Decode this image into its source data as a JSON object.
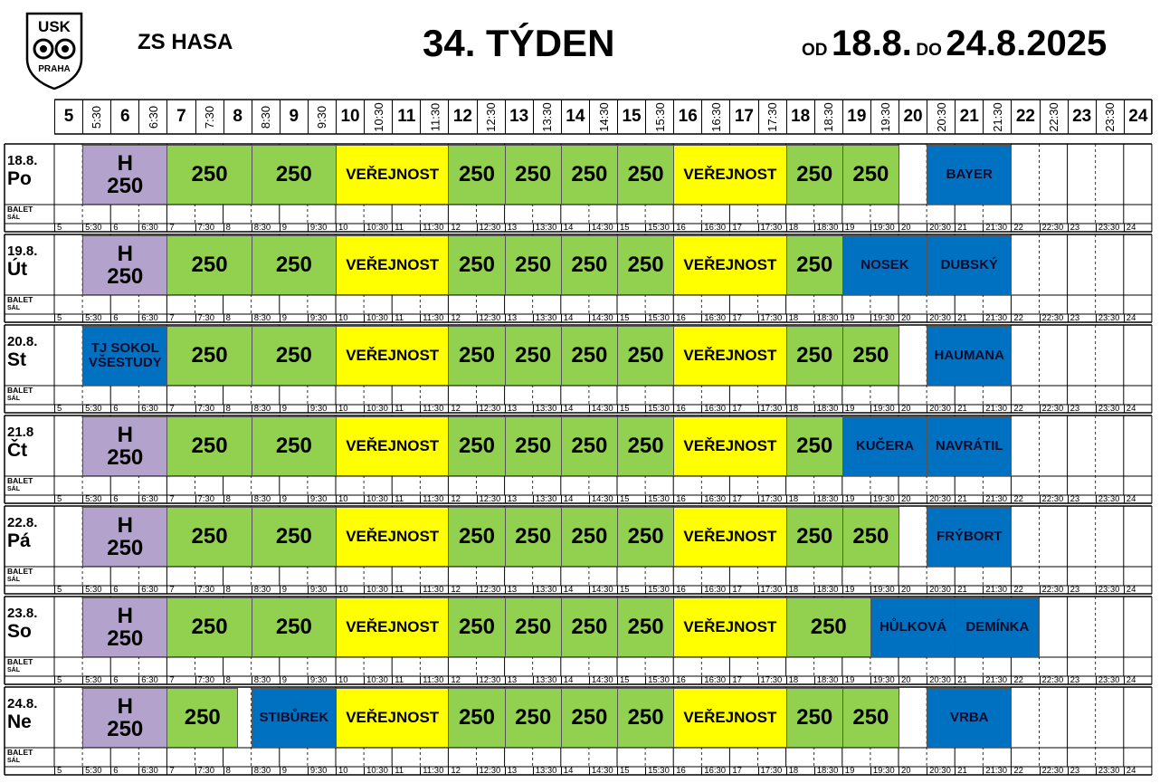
{
  "header": {
    "logo_text_top": "USK",
    "logo_text_bottom": "PRAHA",
    "venue": "ZS HASA",
    "week": "34. TÝDEN",
    "range_from_label": "OD",
    "range_from": "18.8.",
    "range_to_label": "DO",
    "range_to": "24.8.2025"
  },
  "balet_label_1": "BALET",
  "balet_label_2": "SÁL",
  "colors": {
    "lavender": "#b3a2cc",
    "green": "#92d050",
    "yellow": "#ffff00",
    "blue": "#0070c0",
    "grid_line": "#000000"
  },
  "time_labels": [
    "5",
    "5:30",
    "6",
    "6:30",
    "7",
    "7:30",
    "8",
    "8:30",
    "9",
    "9:30",
    "10",
    "10:30",
    "11",
    "11:30",
    "12",
    "12:30",
    "13",
    "13:30",
    "14",
    "14:30",
    "15",
    "15:30",
    "16",
    "16:30",
    "17",
    "17:30",
    "18",
    "18:30",
    "19",
    "19:30",
    "20",
    "20:30",
    "21",
    "21:30",
    "22",
    "22:30",
    "23",
    "23:30",
    "24"
  ],
  "days": [
    {
      "date": "18.8.",
      "weekday": "Po",
      "blocks": [
        {
          "start": 1,
          "end": 4,
          "text": "H\n250",
          "color": "lavender",
          "size": "xl"
        },
        {
          "start": 4,
          "end": 7,
          "text": "250",
          "color": "green",
          "size": "xl"
        },
        {
          "start": 7,
          "end": 10,
          "text": "250",
          "color": "green",
          "size": "xl"
        },
        {
          "start": 10,
          "end": 14,
          "text": "VEŘEJNOST",
          "color": "yellow",
          "size": "md"
        },
        {
          "start": 14,
          "end": 16,
          "text": "250",
          "color": "green",
          "size": "xl"
        },
        {
          "start": 16,
          "end": 18,
          "text": "250",
          "color": "green",
          "size": "xl"
        },
        {
          "start": 18,
          "end": 20,
          "text": "250",
          "color": "green",
          "size": "xl"
        },
        {
          "start": 20,
          "end": 22,
          "text": "250",
          "color": "green",
          "size": "xl"
        },
        {
          "start": 22,
          "end": 26,
          "text": "VEŘEJNOST",
          "color": "yellow",
          "size": "md"
        },
        {
          "start": 26,
          "end": 28,
          "text": "250",
          "color": "green",
          "size": "xl"
        },
        {
          "start": 28,
          "end": 30,
          "text": "250",
          "color": "green",
          "size": "xl"
        },
        {
          "start": 31,
          "end": 34,
          "text": "BAYER",
          "color": "blue",
          "size": "sm"
        }
      ]
    },
    {
      "date": "19.8.",
      "weekday": "Út",
      "blocks": [
        {
          "start": 1,
          "end": 4,
          "text": "H\n250",
          "color": "lavender",
          "size": "xl"
        },
        {
          "start": 4,
          "end": 7,
          "text": "250",
          "color": "green",
          "size": "xl"
        },
        {
          "start": 7,
          "end": 10,
          "text": "250",
          "color": "green",
          "size": "xl"
        },
        {
          "start": 10,
          "end": 14,
          "text": "VEŘEJNOST",
          "color": "yellow",
          "size": "md"
        },
        {
          "start": 14,
          "end": 16,
          "text": "250",
          "color": "green",
          "size": "xl"
        },
        {
          "start": 16,
          "end": 18,
          "text": "250",
          "color": "green",
          "size": "xl"
        },
        {
          "start": 18,
          "end": 20,
          "text": "250",
          "color": "green",
          "size": "xl"
        },
        {
          "start": 20,
          "end": 22,
          "text": "250",
          "color": "green",
          "size": "xl"
        },
        {
          "start": 22,
          "end": 26,
          "text": "VEŘEJNOST",
          "color": "yellow",
          "size": "md"
        },
        {
          "start": 26,
          "end": 28,
          "text": "250",
          "color": "green",
          "size": "xl"
        },
        {
          "start": 28,
          "end": 31,
          "text": "NOSEK",
          "color": "blue",
          "size": "sm"
        },
        {
          "start": 31,
          "end": 34,
          "text": "DUBSKÝ",
          "color": "blue",
          "size": "sm"
        }
      ]
    },
    {
      "date": "20.8.",
      "weekday": "St",
      "blocks": [
        {
          "start": 1,
          "end": 4,
          "text": "TJ SOKOL\nVŠESTUDY",
          "color": "blue",
          "size": "sm"
        },
        {
          "start": 4,
          "end": 7,
          "text": "250",
          "color": "green",
          "size": "xl"
        },
        {
          "start": 7,
          "end": 10,
          "text": "250",
          "color": "green",
          "size": "xl"
        },
        {
          "start": 10,
          "end": 14,
          "text": "VEŘEJNOST",
          "color": "yellow",
          "size": "md"
        },
        {
          "start": 14,
          "end": 16,
          "text": "250",
          "color": "green",
          "size": "xl"
        },
        {
          "start": 16,
          "end": 18,
          "text": "250",
          "color": "green",
          "size": "xl"
        },
        {
          "start": 18,
          "end": 20,
          "text": "250",
          "color": "green",
          "size": "xl"
        },
        {
          "start": 20,
          "end": 22,
          "text": "250",
          "color": "green",
          "size": "xl"
        },
        {
          "start": 22,
          "end": 26,
          "text": "VEŘEJNOST",
          "color": "yellow",
          "size": "md"
        },
        {
          "start": 26,
          "end": 28,
          "text": "250",
          "color": "green",
          "size": "xl"
        },
        {
          "start": 28,
          "end": 30,
          "text": "250",
          "color": "green",
          "size": "xl"
        },
        {
          "start": 31,
          "end": 34,
          "text": "HAUMANA",
          "color": "blue",
          "size": "sm"
        }
      ]
    },
    {
      "date": "21.8",
      "weekday": "Čt",
      "blocks": [
        {
          "start": 1,
          "end": 4,
          "text": "H\n250",
          "color": "lavender",
          "size": "xl"
        },
        {
          "start": 4,
          "end": 7,
          "text": "250",
          "color": "green",
          "size": "xl"
        },
        {
          "start": 7,
          "end": 10,
          "text": "250",
          "color": "green",
          "size": "xl"
        },
        {
          "start": 10,
          "end": 14,
          "text": "VEŘEJNOST",
          "color": "yellow",
          "size": "md"
        },
        {
          "start": 14,
          "end": 16,
          "text": "250",
          "color": "green",
          "size": "xl"
        },
        {
          "start": 16,
          "end": 18,
          "text": "250",
          "color": "green",
          "size": "xl"
        },
        {
          "start": 18,
          "end": 20,
          "text": "250",
          "color": "green",
          "size": "xl"
        },
        {
          "start": 20,
          "end": 22,
          "text": "250",
          "color": "green",
          "size": "xl"
        },
        {
          "start": 22,
          "end": 26,
          "text": "VEŘEJNOST",
          "color": "yellow",
          "size": "md"
        },
        {
          "start": 26,
          "end": 28,
          "text": "250",
          "color": "green",
          "size": "xl"
        },
        {
          "start": 28,
          "end": 31,
          "text": "KUČERA",
          "color": "blue",
          "size": "sm"
        },
        {
          "start": 31,
          "end": 34,
          "text": "NAVRÁTIL",
          "color": "blue",
          "size": "sm"
        }
      ]
    },
    {
      "date": "22.8.",
      "weekday": "Pá",
      "blocks": [
        {
          "start": 1,
          "end": 4,
          "text": "H\n250",
          "color": "lavender",
          "size": "xl"
        },
        {
          "start": 4,
          "end": 7,
          "text": "250",
          "color": "green",
          "size": "xl"
        },
        {
          "start": 7,
          "end": 10,
          "text": "250",
          "color": "green",
          "size": "xl"
        },
        {
          "start": 10,
          "end": 14,
          "text": "VEŘEJNOST",
          "color": "yellow",
          "size": "md"
        },
        {
          "start": 14,
          "end": 16,
          "text": "250",
          "color": "green",
          "size": "xl"
        },
        {
          "start": 16,
          "end": 18,
          "text": "250",
          "color": "green",
          "size": "xl"
        },
        {
          "start": 18,
          "end": 20,
          "text": "250",
          "color": "green",
          "size": "xl"
        },
        {
          "start": 20,
          "end": 22,
          "text": "250",
          "color": "green",
          "size": "xl"
        },
        {
          "start": 22,
          "end": 26,
          "text": "VEŘEJNOST",
          "color": "yellow",
          "size": "md"
        },
        {
          "start": 26,
          "end": 28,
          "text": "250",
          "color": "green",
          "size": "xl"
        },
        {
          "start": 28,
          "end": 30,
          "text": "250",
          "color": "green",
          "size": "xl"
        },
        {
          "start": 31,
          "end": 34,
          "text": "FRÝBORT",
          "color": "blue",
          "size": "sm"
        }
      ]
    },
    {
      "date": "23.8.",
      "weekday": "So",
      "blocks": [
        {
          "start": 1,
          "end": 4,
          "text": "H\n250",
          "color": "lavender",
          "size": "xl"
        },
        {
          "start": 4,
          "end": 7,
          "text": "250",
          "color": "green",
          "size": "xl"
        },
        {
          "start": 7,
          "end": 10,
          "text": "250",
          "color": "green",
          "size": "xl"
        },
        {
          "start": 10,
          "end": 14,
          "text": "VEŘEJNOST",
          "color": "yellow",
          "size": "md"
        },
        {
          "start": 14,
          "end": 16,
          "text": "250",
          "color": "green",
          "size": "xl"
        },
        {
          "start": 16,
          "end": 18,
          "text": "250",
          "color": "green",
          "size": "xl"
        },
        {
          "start": 18,
          "end": 20,
          "text": "250",
          "color": "green",
          "size": "xl"
        },
        {
          "start": 20,
          "end": 22,
          "text": "250",
          "color": "green",
          "size": "xl"
        },
        {
          "start": 22,
          "end": 26,
          "text": "VEŘEJNOST",
          "color": "yellow",
          "size": "md"
        },
        {
          "start": 26,
          "end": 29,
          "text": "250",
          "color": "green",
          "size": "xl"
        },
        {
          "start": 29,
          "end": 32,
          "text": "HŮLKOVÁ",
          "color": "blue",
          "size": "sm"
        },
        {
          "start": 32,
          "end": 35,
          "text": "DEMÍNKA",
          "color": "blue",
          "size": "sm"
        }
      ]
    },
    {
      "date": "24.8.",
      "weekday": "Ne",
      "blocks": [
        {
          "start": 1,
          "end": 4,
          "text": "H\n250",
          "color": "lavender",
          "size": "xl"
        },
        {
          "start": 4,
          "end": 6.5,
          "text": "250",
          "color": "green",
          "size": "xl"
        },
        {
          "start": 7,
          "end": 10,
          "text": "STIBŮREK",
          "color": "blue",
          "size": "sm"
        },
        {
          "start": 10,
          "end": 14,
          "text": "VEŘEJNOST",
          "color": "yellow",
          "size": "md"
        },
        {
          "start": 14,
          "end": 16,
          "text": "250",
          "color": "green",
          "size": "xl"
        },
        {
          "start": 16,
          "end": 18,
          "text": "250",
          "color": "green",
          "size": "xl"
        },
        {
          "start": 18,
          "end": 20,
          "text": "250",
          "color": "green",
          "size": "xl"
        },
        {
          "start": 20,
          "end": 22,
          "text": "250",
          "color": "green",
          "size": "xl"
        },
        {
          "start": 22,
          "end": 26,
          "text": "VEŘEJNOST",
          "color": "yellow",
          "size": "md"
        },
        {
          "start": 26,
          "end": 28,
          "text": "250",
          "color": "green",
          "size": "xl"
        },
        {
          "start": 28,
          "end": 30,
          "text": "250",
          "color": "green",
          "size": "xl"
        },
        {
          "start": 31,
          "end": 34,
          "text": "VRBA",
          "color": "blue",
          "size": "sm"
        }
      ]
    }
  ]
}
